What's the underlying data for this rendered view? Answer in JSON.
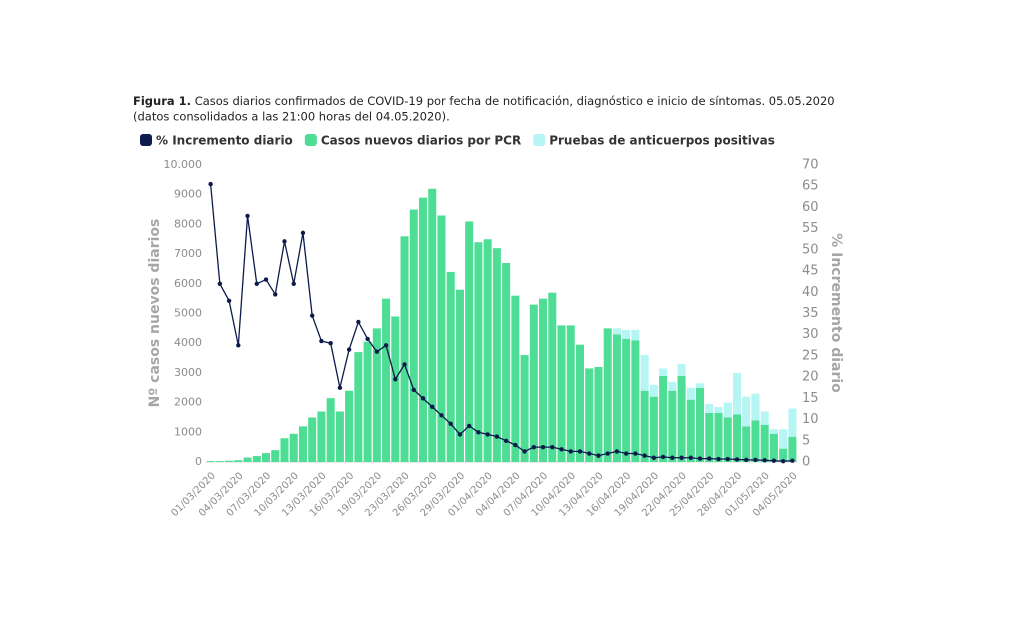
{
  "chart_data": {
    "type": "bar",
    "stacked": true,
    "figure_label": "Figura 1.",
    "title": "Casos diarios confirmados de COVID-19 por fecha de notificación, diagnóstico e inicio de síntomas. 05.05.2020",
    "subtitle": "(datos consolidados a las 21:00 horas del 04.05.2020).",
    "y_label": "Nº casos nuevos diarios",
    "y2_label": "% Incremento diario",
    "categories": [
      "01/03/2020",
      null,
      null,
      "04/03/2020",
      null,
      null,
      "07/03/2020",
      null,
      null,
      "10/03/2020",
      null,
      null,
      "13/03/2020",
      null,
      null,
      "16/03/2020",
      null,
      null,
      "19/03/2020",
      null,
      null,
      "23/03/2020",
      null,
      null,
      "26/03/2020",
      null,
      null,
      "29/03/2020",
      null,
      null,
      "01/04/2020",
      null,
      null,
      "04/04/2020",
      null,
      null,
      "07/04/2020",
      null,
      null,
      "10/04/2020",
      null,
      null,
      "13/04/2020",
      null,
      null,
      "16/04/2020",
      null,
      null,
      "19/04/2020",
      null,
      null,
      "22/04/2020",
      null,
      null,
      "25/04/2020",
      null,
      null,
      "28/04/2020",
      null,
      null,
      "01/05/2020",
      null,
      null,
      "04/05/2020"
    ],
    "series": [
      {
        "name": "% Incremento diario",
        "type": "line",
        "axis": "y2",
        "color": "#0d1b4c",
        "values": [
          65.5,
          42,
          38,
          27.5,
          58,
          42,
          43,
          39.5,
          52,
          42,
          54,
          34.5,
          28.5,
          28,
          17.5,
          26.5,
          33,
          29,
          26,
          27.5,
          19.5,
          23,
          17,
          15,
          13,
          11,
          9,
          6.5,
          8.5,
          7,
          6.5,
          6,
          5,
          4,
          2.5,
          3.5,
          3.5,
          3.5,
          3,
          2.5,
          2.5,
          2,
          1.5,
          2,
          2.5,
          2,
          2,
          1.5,
          1,
          1.2,
          1,
          1,
          1,
          0.8,
          0.8,
          0.7,
          0.7,
          0.6,
          0.5,
          0.5,
          0.4,
          0.3,
          0.2,
          0.3
        ]
      },
      {
        "name": "Casos nuevos diarios por PCR",
        "color": "#4edd95",
        "values": [
          30,
          30,
          40,
          60,
          150,
          200,
          300,
          400,
          800,
          950,
          1200,
          1500,
          1700,
          2150,
          1700,
          2400,
          3700,
          4050,
          4500,
          5500,
          4900,
          7600,
          8500,
          8900,
          9200,
          8300,
          6400,
          5800,
          8100,
          7400,
          7500,
          7200,
          6700,
          5600,
          3600,
          5300,
          5500,
          5700,
          4600,
          4600,
          3950,
          3150,
          3200,
          4500,
          4300,
          4150,
          4100,
          2400,
          2200,
          2900,
          2400,
          2900,
          2100,
          2500,
          1650,
          1650,
          1500,
          1600,
          1200,
          1400,
          1250,
          950,
          450,
          850
        ]
      },
      {
        "name": "Pruebas de anticuerpos positivas",
        "color": "#b5f5f3",
        "values": [
          0,
          0,
          0,
          0,
          0,
          0,
          0,
          0,
          0,
          0,
          0,
          0,
          0,
          0,
          0,
          0,
          0,
          0,
          0,
          0,
          0,
          0,
          0,
          0,
          0,
          0,
          0,
          0,
          0,
          0,
          0,
          0,
          0,
          0,
          0,
          0,
          0,
          0,
          0,
          0,
          0,
          0,
          0,
          0,
          200,
          300,
          350,
          1200,
          400,
          250,
          300,
          400,
          400,
          150,
          300,
          200,
          500,
          1400,
          1000,
          900,
          450,
          150,
          650,
          950
        ]
      }
    ],
    "ylim": [
      0,
      10000
    ],
    "yticks": [
      0,
      1000,
      2000,
      3000,
      4000,
      5000,
      6000,
      7000,
      8000,
      9000,
      {
        "value": 10000,
        "label": "10.000"
      }
    ],
    "y2lim": [
      0,
      70
    ],
    "y2ticks": [
      0,
      5,
      10,
      15,
      20,
      25,
      30,
      35,
      40,
      45,
      50,
      55,
      60,
      65,
      70
    ]
  }
}
